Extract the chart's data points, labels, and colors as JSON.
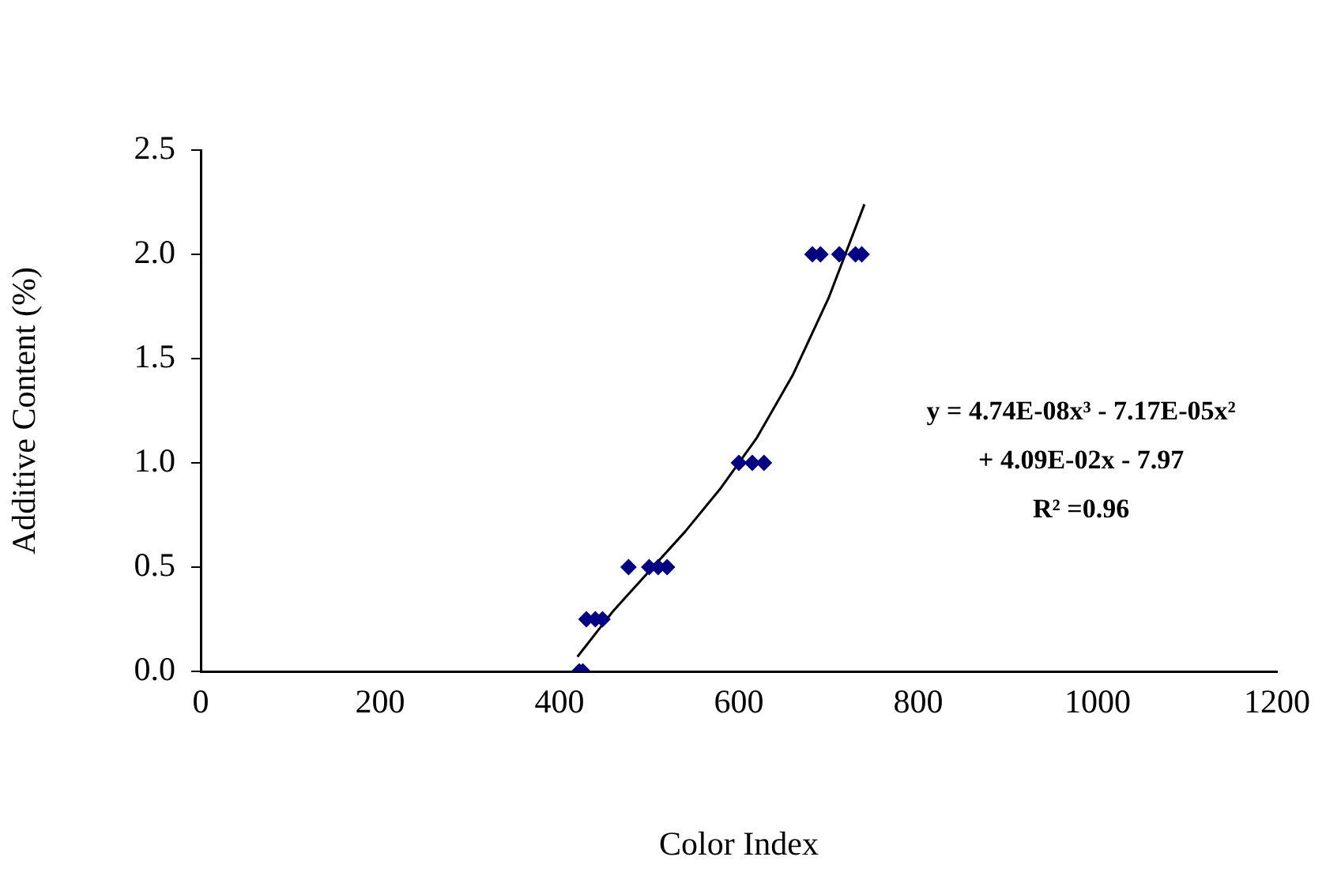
{
  "chart_data": {
    "type": "scatter",
    "xlabel": "Color Index",
    "ylabel": "Additive Content (%)",
    "xlim": [
      0,
      1200
    ],
    "xticks": [
      0,
      200,
      400,
      600,
      800,
      1000,
      1200
    ],
    "ylim": [
      0,
      2.5
    ],
    "yticks": [
      {
        "value": 0,
        "label": "0.0"
      },
      {
        "value": 0.5,
        "label": "0.5"
      },
      {
        "value": 1,
        "label": "1.0"
      },
      {
        "value": 1.5,
        "label": "1.5"
      },
      {
        "value": 2,
        "label": "2.0"
      },
      {
        "value": 2.5,
        "label": "2.5"
      }
    ],
    "grid": false,
    "legend": false,
    "marker": "diamond",
    "series": [
      {
        "color": "#000080",
        "x": [
          422,
          426,
          430,
          440,
          448,
          477,
          500,
          510,
          520,
          600,
          615,
          628,
          682,
          691,
          712,
          730,
          737
        ],
        "values": [
          0,
          0,
          0.25,
          0.25,
          0.25,
          0.5,
          0.5,
          0.5,
          0.5,
          1,
          1,
          1,
          2,
          2,
          2,
          2,
          2
        ]
      },
      {
        "type": "line",
        "color": "#000000",
        "marker": "none",
        "line_style": "solid",
        "x": [
          420,
          460,
          500,
          540,
          580,
          620,
          660,
          700,
          740
        ],
        "values": [
          0.07,
          0.29,
          0.48,
          0.67,
          0.88,
          1.12,
          1.42,
          1.79,
          2.24
        ]
      }
    ],
    "annotations": [
      "y = 4.74E-08x³ - 7.17E-05x²",
      "+ 4.09E-02x - 7.97",
      "R² =0.96"
    ]
  }
}
